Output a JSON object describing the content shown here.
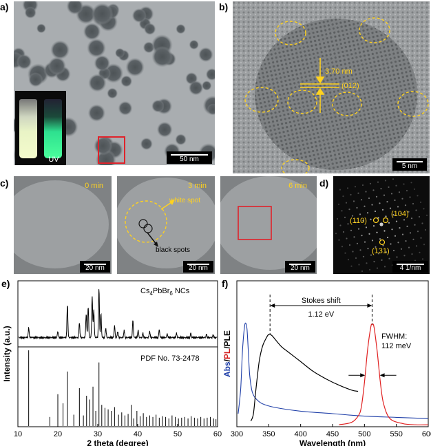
{
  "panels": {
    "a": {
      "label": "a)",
      "scalebar": "50 nm",
      "uv_label": "UV"
    },
    "b": {
      "label": "b)",
      "scalebar": "5 nm",
      "d_spacing": "3.70 nm",
      "plane": "(012)"
    },
    "c": {
      "label": "c)",
      "frames": [
        {
          "time": "0 min",
          "scalebar": "20 nm"
        },
        {
          "time": "3 min",
          "scalebar": "20 nm",
          "white_spot": "white spot",
          "black_spots": "black spots"
        },
        {
          "time": "6 min",
          "scalebar": "20 nm"
        }
      ]
    },
    "d": {
      "label": "d)",
      "scalebar": "4 1/nm",
      "spot1": "(110)",
      "spot2": "(104)",
      "spot3": "(131)"
    },
    "e": {
      "label": "e)"
    },
    "f": {
      "label": "f)"
    }
  },
  "chart_data": [
    {
      "type": "line",
      "panel": "e",
      "xlabel": "2 theta (degree)",
      "ylabel": "Intensity (a.u.)",
      "xlim": [
        10,
        60
      ],
      "xticks": [
        10,
        20,
        30,
        40,
        50,
        60
      ],
      "top_label": "Cs4PbBr6 NCs",
      "top_label_parts": {
        "main": "Cs",
        "sub1": "4",
        "mid": "PbBr",
        "sub2": "6",
        "end": " NCs"
      },
      "bottom_label": "PDF No. 73-2478",
      "xrd_peaks": [
        {
          "x": 12.7,
          "h": 0.18
        },
        {
          "x": 20.0,
          "h": 0.12
        },
        {
          "x": 22.4,
          "h": 0.62
        },
        {
          "x": 25.4,
          "h": 0.28
        },
        {
          "x": 27.1,
          "h": 0.45
        },
        {
          "x": 27.6,
          "h": 0.58
        },
        {
          "x": 28.6,
          "h": 0.78
        },
        {
          "x": 29.0,
          "h": 0.52
        },
        {
          "x": 30.3,
          "h": 0.92
        },
        {
          "x": 30.8,
          "h": 0.45
        },
        {
          "x": 32.0,
          "h": 0.18
        },
        {
          "x": 34.2,
          "h": 0.22
        },
        {
          "x": 35.0,
          "h": 0.12
        },
        {
          "x": 36.6,
          "h": 0.14
        },
        {
          "x": 38.8,
          "h": 0.32
        },
        {
          "x": 40.1,
          "h": 0.14
        },
        {
          "x": 41.3,
          "h": 0.08
        },
        {
          "x": 43.0,
          "h": 0.12
        },
        {
          "x": 45.4,
          "h": 0.15
        },
        {
          "x": 47.4,
          "h": 0.07
        },
        {
          "x": 49.7,
          "h": 0.08
        },
        {
          "x": 53.3,
          "h": 0.08
        },
        {
          "x": 57.2,
          "h": 0.06
        },
        {
          "x": 58.9,
          "h": 0.05
        }
      ],
      "reference_lines": [
        {
          "x": 12.7,
          "h": 1.0
        },
        {
          "x": 18.0,
          "h": 0.12
        },
        {
          "x": 20.0,
          "h": 0.42
        },
        {
          "x": 21.3,
          "h": 0.3
        },
        {
          "x": 22.4,
          "h": 0.72
        },
        {
          "x": 24.0,
          "h": 0.15
        },
        {
          "x": 25.4,
          "h": 0.5
        },
        {
          "x": 26.4,
          "h": 0.14
        },
        {
          "x": 27.2,
          "h": 0.4
        },
        {
          "x": 28.0,
          "h": 0.35
        },
        {
          "x": 28.8,
          "h": 0.52
        },
        {
          "x": 29.5,
          "h": 0.2
        },
        {
          "x": 30.3,
          "h": 0.84
        },
        {
          "x": 31.0,
          "h": 0.28
        },
        {
          "x": 31.8,
          "h": 0.24
        },
        {
          "x": 32.6,
          "h": 0.22
        },
        {
          "x": 33.4,
          "h": 0.2
        },
        {
          "x": 34.2,
          "h": 0.25
        },
        {
          "x": 35.2,
          "h": 0.15
        },
        {
          "x": 36.0,
          "h": 0.18
        },
        {
          "x": 36.8,
          "h": 0.14
        },
        {
          "x": 37.6,
          "h": 0.16
        },
        {
          "x": 38.4,
          "h": 0.28
        },
        {
          "x": 39.0,
          "h": 0.1
        },
        {
          "x": 39.8,
          "h": 0.2
        },
        {
          "x": 40.6,
          "h": 0.13
        },
        {
          "x": 41.4,
          "h": 0.17
        },
        {
          "x": 42.2,
          "h": 0.12
        },
        {
          "x": 43.0,
          "h": 0.14
        },
        {
          "x": 43.8,
          "h": 0.12
        },
        {
          "x": 44.6,
          "h": 0.15
        },
        {
          "x": 45.4,
          "h": 0.11
        },
        {
          "x": 46.2,
          "h": 0.13
        },
        {
          "x": 47.0,
          "h": 0.12
        },
        {
          "x": 47.8,
          "h": 0.1
        },
        {
          "x": 48.6,
          "h": 0.14
        },
        {
          "x": 49.4,
          "h": 0.12
        },
        {
          "x": 50.2,
          "h": 0.1
        },
        {
          "x": 51.0,
          "h": 0.11
        },
        {
          "x": 51.8,
          "h": 0.12
        },
        {
          "x": 52.6,
          "h": 0.1
        },
        {
          "x": 53.4,
          "h": 0.13
        },
        {
          "x": 54.2,
          "h": 0.11
        },
        {
          "x": 55.0,
          "h": 0.1
        },
        {
          "x": 55.8,
          "h": 0.12
        },
        {
          "x": 56.6,
          "h": 0.1
        },
        {
          "x": 57.4,
          "h": 0.11
        },
        {
          "x": 58.2,
          "h": 0.12
        },
        {
          "x": 59.0,
          "h": 0.1
        },
        {
          "x": 59.6,
          "h": 0.09
        }
      ]
    },
    {
      "type": "line",
      "panel": "f",
      "xlabel": "Wavelength (nm)",
      "ylabel_parts": [
        "Abs",
        "/",
        "PL",
        "/",
        "PLE"
      ],
      "ylabel_colors": [
        "#1f3fa8",
        "#000000",
        "#d42020",
        "#000000",
        "#000000"
      ],
      "xlim": [
        300,
        600
      ],
      "xticks": [
        300,
        350,
        400,
        450,
        500,
        550,
        600
      ],
      "stokes_label": "Stokes shift",
      "stokes_value": "1.12 eV",
      "fwhm_label": "FWHM:",
      "fwhm_value": "112 meV",
      "series": [
        {
          "name": "Abs",
          "color": "#1f3fa8",
          "x": [
            302,
            306,
            309,
            312,
            314,
            316,
            318,
            320,
            323,
            326,
            330,
            340,
            360,
            400,
            450,
            500,
            550,
            600
          ],
          "y": [
            0.1,
            0.3,
            0.62,
            0.8,
            0.83,
            0.78,
            0.6,
            0.42,
            0.3,
            0.25,
            0.22,
            0.18,
            0.15,
            0.12,
            0.1,
            0.08,
            0.07,
            0.06
          ]
        },
        {
          "name": "PLE",
          "color": "#000000",
          "x": [
            322,
            326,
            330,
            335,
            340,
            345,
            350,
            355,
            360,
            370,
            380,
            400,
            420,
            440,
            460,
            480,
            490
          ],
          "y": [
            0.04,
            0.1,
            0.3,
            0.52,
            0.64,
            0.7,
            0.74,
            0.73,
            0.7,
            0.64,
            0.6,
            0.52,
            0.44,
            0.38,
            0.33,
            0.29,
            0.28
          ]
        },
        {
          "name": "PL",
          "color": "#e02020",
          "x": [
            460,
            480,
            490,
            495,
            500,
            505,
            510,
            512,
            515,
            520,
            525,
            530,
            540,
            560,
            580,
            600
          ],
          "y": [
            0.01,
            0.03,
            0.08,
            0.15,
            0.35,
            0.62,
            0.8,
            0.82,
            0.8,
            0.6,
            0.35,
            0.18,
            0.06,
            0.02,
            0.01,
            0.01
          ]
        }
      ]
    }
  ]
}
